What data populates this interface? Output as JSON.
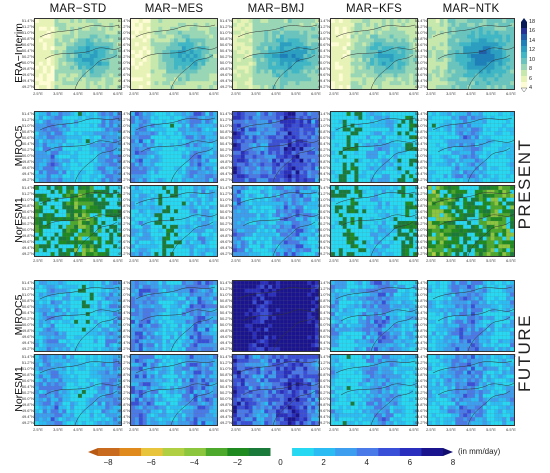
{
  "chart_data": {
    "type": "heatmap",
    "columns": [
      "MAR−STD",
      "MAR−MES",
      "MAR−BMJ",
      "MAR−KFS",
      "MAR−NTK"
    ],
    "rows": [
      "ERA−Interim",
      "MIROC5",
      "NorESM1",
      "MIROC5",
      "NorESM1"
    ],
    "groups": [
      {
        "label": "PRESENT",
        "rows": [
          1,
          2
        ]
      },
      {
        "label": "FUTURE",
        "rows": [
          3,
          4
        ]
      }
    ],
    "lat_ticks": [
      "51.4°N",
      "51.2°N",
      "51.0°N",
      "50.8°N",
      "50.6°N",
      "50.4°N",
      "50.2°N",
      "50.0°N",
      "49.8°N",
      "49.6°N",
      "49.4°N",
      "49.2°N"
    ],
    "lon_ticks": [
      "2.5°E",
      "3.5°E",
      "4.5°E",
      "5.5°E",
      "6.5°E"
    ],
    "colorbar_top": {
      "ticks": [
        "18",
        "16",
        "14",
        "12",
        "10",
        "8",
        "6",
        "4"
      ],
      "range": [
        4,
        18
      ]
    },
    "colorbar_bottom": {
      "ticks": [
        "−8",
        "−6",
        "−4",
        "−2",
        "0",
        "2",
        "4",
        "6",
        "8"
      ],
      "range": [
        -8,
        8
      ],
      "unit": "(in mm/day)"
    },
    "panel_mean_values": [
      [
        7,
        7,
        8,
        7,
        9
      ],
      [
        2.5,
        2.5,
        5,
        1.5,
        2.5
      ],
      [
        -1,
        1.5,
        3,
        1,
        -1.5
      ],
      [
        2,
        3,
        8,
        3,
        3
      ],
      [
        2.5,
        3,
        5,
        2.5,
        3
      ]
    ],
    "colors": {
      "ref": [
        "#fdfcd4",
        "#e7f3b6",
        "#c7e8ad",
        "#98d6b6",
        "#6ac4bd",
        "#41b6c4",
        "#2c9ec0",
        "#1f80b8",
        "#225ea8",
        "#253494",
        "#081d58"
      ],
      "diff": [
        "#c96b1e",
        "#e08a1e",
        "#e8c43c",
        "#b0cf42",
        "#8cc63f",
        "#4ca92c",
        "#1f8a1f",
        "#1a7a3a",
        "#ffffff",
        "#26d8f2",
        "#2bbcf4",
        "#3d9ef0",
        "#4a7ae8",
        "#3a4fd8",
        "#2a2fbd",
        "#1a158f"
      ]
    }
  }
}
